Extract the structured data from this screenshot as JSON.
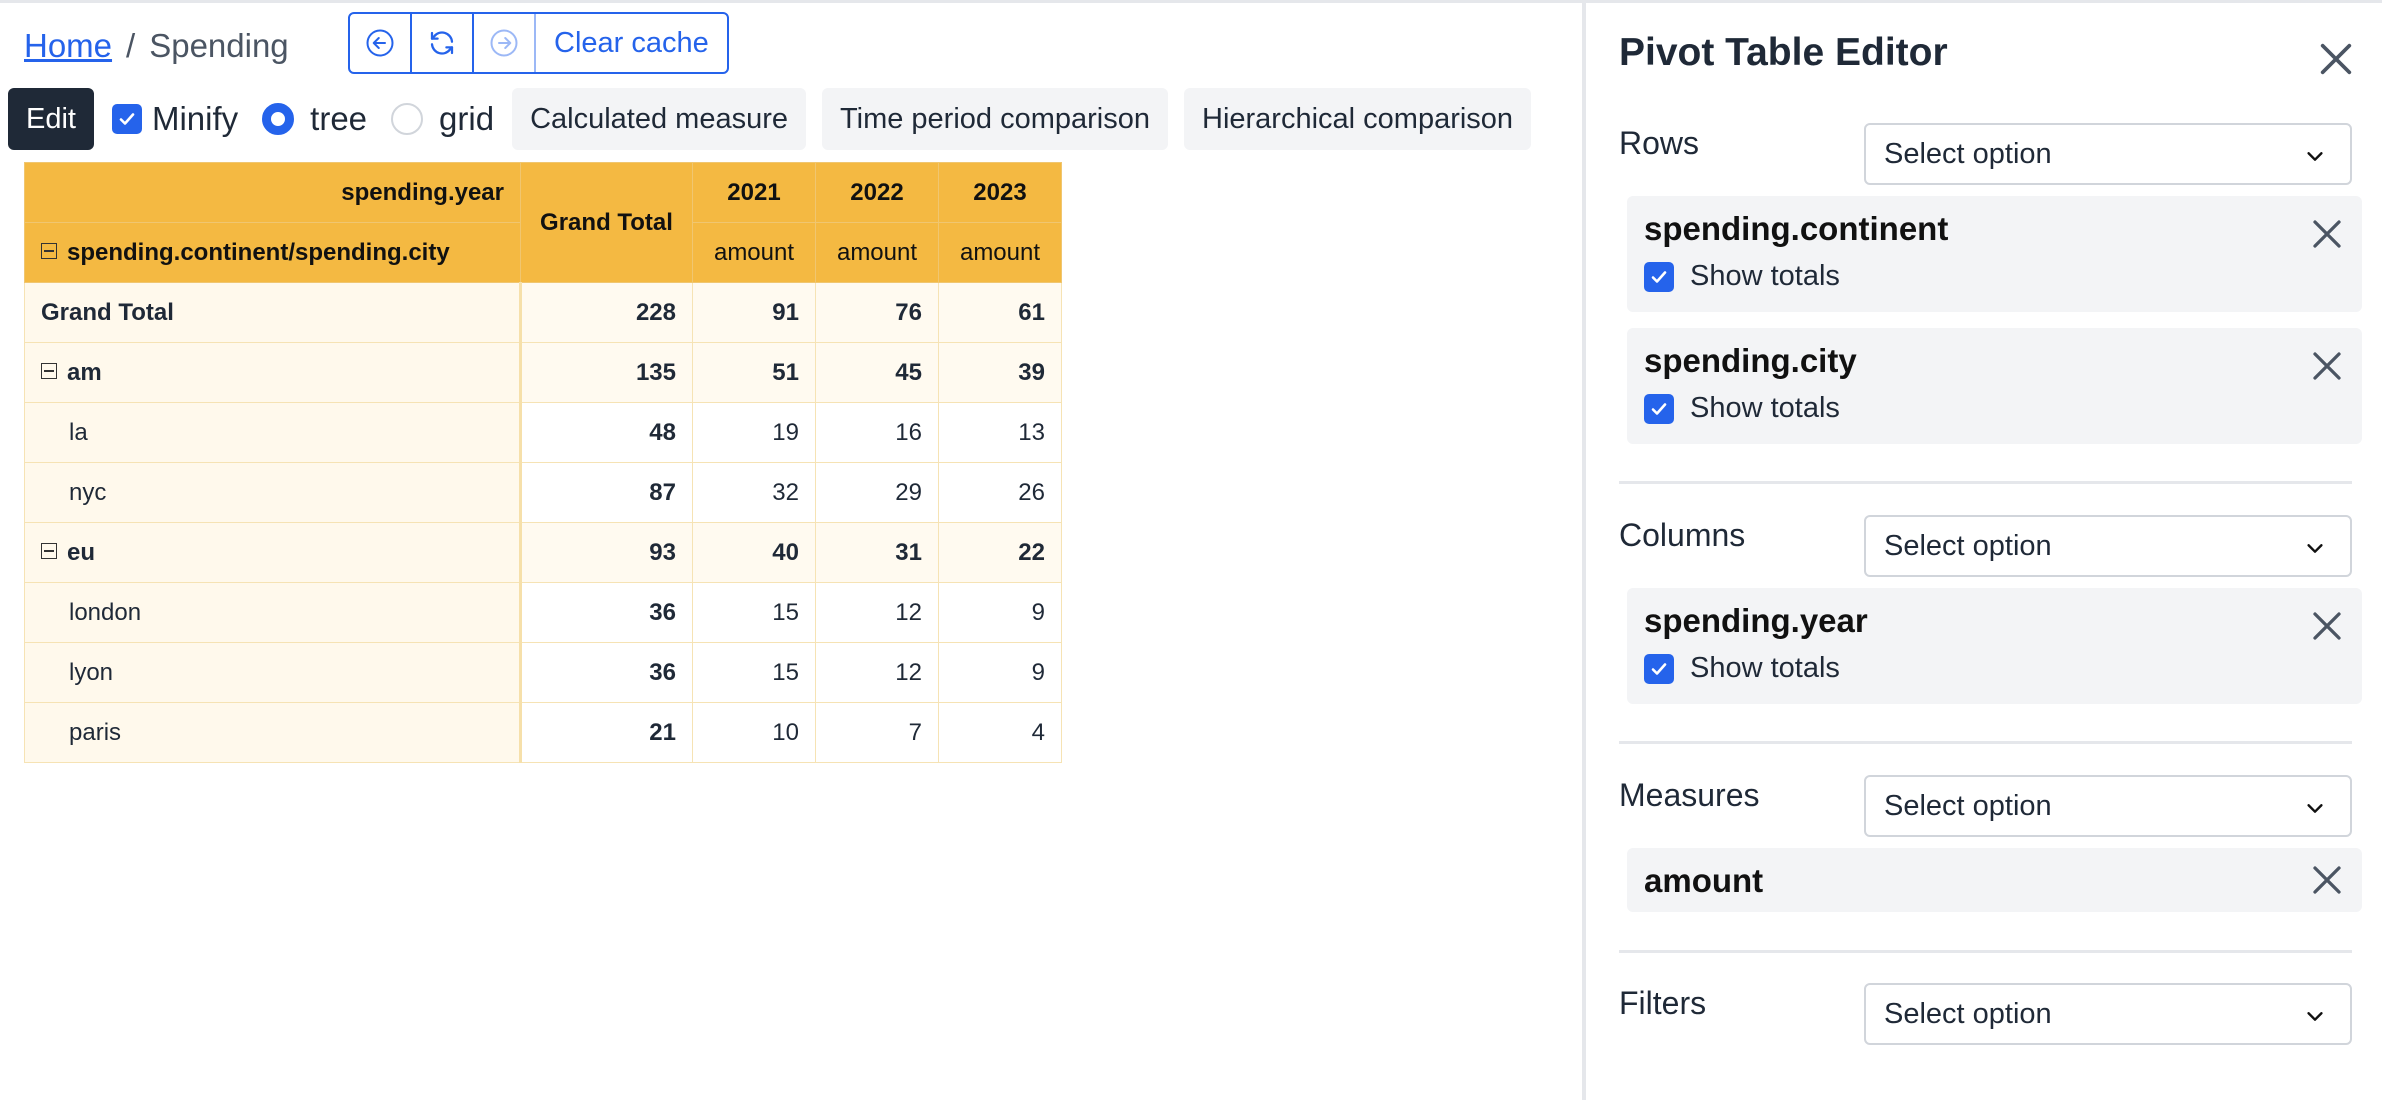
{
  "breadcrumb": {
    "home": "Home",
    "separator": "/",
    "current": "Spending"
  },
  "nav": {
    "back_icon": "arrow-left-circle-icon",
    "refresh_icon": "refresh-icon",
    "forward_icon": "arrow-right-circle-icon",
    "clear_cache": "Clear cache"
  },
  "toolbar": {
    "edit": "Edit",
    "minify": {
      "label": "Minify",
      "checked": true
    },
    "view_modes": [
      {
        "label": "tree",
        "selected": true
      },
      {
        "label": "grid",
        "selected": false
      }
    ],
    "buttons": [
      "Calculated measure",
      "Time period comparison",
      "Hierarchical comparison"
    ]
  },
  "pivot": {
    "col_dim_label": "spending.year",
    "row_dim_label": "spending.continent/spending.city",
    "grand_total_header": "Grand Total",
    "years": [
      "2021",
      "2022",
      "2023"
    ],
    "measure": "amount",
    "rows": [
      {
        "label": "Grand Total",
        "type": "total",
        "grand": "228",
        "values": [
          "91",
          "76",
          "61"
        ]
      },
      {
        "label": "am",
        "type": "group",
        "grand": "135",
        "values": [
          "51",
          "45",
          "39"
        ]
      },
      {
        "label": "la",
        "type": "child",
        "grand": "48",
        "values": [
          "19",
          "16",
          "13"
        ]
      },
      {
        "label": "nyc",
        "type": "child",
        "grand": "87",
        "values": [
          "32",
          "29",
          "26"
        ]
      },
      {
        "label": "eu",
        "type": "group",
        "grand": "93",
        "values": [
          "40",
          "31",
          "22"
        ]
      },
      {
        "label": "london",
        "type": "child",
        "grand": "36",
        "values": [
          "15",
          "12",
          "9"
        ]
      },
      {
        "label": "lyon",
        "type": "child",
        "grand": "36",
        "values": [
          "15",
          "12",
          "9"
        ]
      },
      {
        "label": "paris",
        "type": "child",
        "grand": "21",
        "values": [
          "10",
          "7",
          "4"
        ]
      }
    ]
  },
  "panel": {
    "title": "Pivot Table Editor",
    "select_placeholder": "Select option",
    "show_totals": "Show totals",
    "rows_label": "Rows",
    "columns_label": "Columns",
    "measures_label": "Measures",
    "filters_label": "Filters",
    "row_fields": [
      {
        "name": "spending.continent",
        "show_totals": true
      },
      {
        "name": "spending.city",
        "show_totals": true
      }
    ],
    "column_fields": [
      {
        "name": "spending.year",
        "show_totals": true
      }
    ],
    "measure_fields": [
      {
        "name": "amount"
      }
    ]
  },
  "colors": {
    "accent": "#2563eb",
    "header_bg": "#f4b942",
    "edit_bg": "#1f2937"
  }
}
